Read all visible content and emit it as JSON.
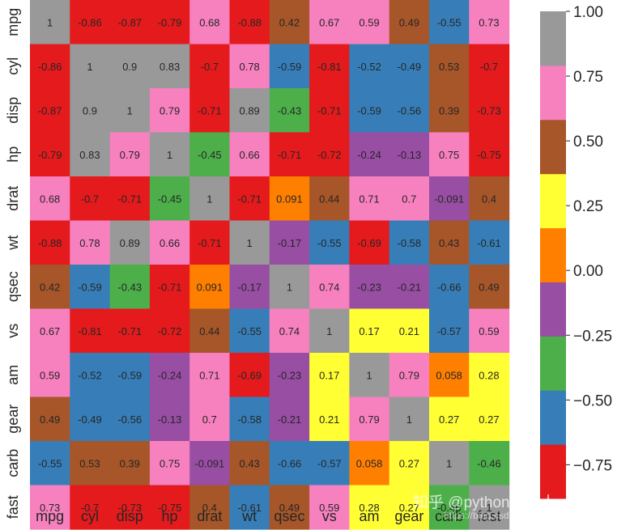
{
  "chart_data": {
    "type": "heatmap",
    "title": "",
    "xlabel": "",
    "ylabel": "",
    "row_labels": [
      "mpg",
      "cyl",
      "disp",
      "hp",
      "drat",
      "wt",
      "qsec",
      "vs",
      "am",
      "gear",
      "carb",
      "fast"
    ],
    "col_labels": [
      "mpg",
      "cyl",
      "disp",
      "hp",
      "drat",
      "wt",
      "qsec",
      "vs",
      "am",
      "gear",
      "carb",
      "fast"
    ],
    "values": [
      [
        1,
        -0.86,
        -0.87,
        -0.79,
        0.68,
        -0.88,
        0.42,
        0.67,
        0.59,
        0.49,
        -0.55,
        0.73
      ],
      [
        -0.86,
        1,
        0.9,
        0.83,
        -0.7,
        0.78,
        -0.59,
        -0.81,
        -0.52,
        -0.49,
        0.53,
        -0.7
      ],
      [
        -0.87,
        0.9,
        1,
        0.79,
        -0.71,
        0.89,
        -0.43,
        -0.71,
        -0.59,
        -0.56,
        0.39,
        -0.73
      ],
      [
        -0.79,
        0.83,
        0.79,
        1,
        -0.45,
        0.66,
        -0.71,
        -0.72,
        -0.24,
        -0.13,
        0.75,
        -0.75
      ],
      [
        0.68,
        -0.7,
        -0.71,
        -0.45,
        1,
        -0.71,
        0.091,
        0.44,
        0.71,
        0.7,
        -0.091,
        0.4
      ],
      [
        -0.88,
        0.78,
        0.89,
        0.66,
        -0.71,
        1,
        -0.17,
        -0.55,
        -0.69,
        -0.58,
        0.43,
        -0.61
      ],
      [
        0.42,
        -0.59,
        -0.43,
        -0.71,
        0.091,
        -0.17,
        1,
        0.74,
        -0.23,
        -0.21,
        -0.66,
        0.49
      ],
      [
        0.67,
        -0.81,
        -0.71,
        -0.72,
        0.44,
        -0.55,
        0.74,
        1,
        0.17,
        0.21,
        -0.57,
        0.59
      ],
      [
        0.59,
        -0.52,
        -0.59,
        -0.24,
        0.71,
        -0.69,
        -0.23,
        0.17,
        1,
        0.79,
        0.058,
        0.28
      ],
      [
        0.49,
        -0.49,
        -0.56,
        -0.13,
        0.7,
        -0.58,
        -0.21,
        0.21,
        0.79,
        1,
        0.27,
        0.27
      ],
      [
        -0.55,
        0.53,
        0.39,
        0.75,
        -0.091,
        0.43,
        -0.66,
        -0.57,
        0.058,
        0.27,
        1,
        -0.46
      ],
      [
        0.73,
        -0.7,
        -0.73,
        -0.75,
        0.4,
        -0.61,
        0.49,
        0.59,
        0.28,
        0.27,
        -0.46,
        1
      ]
    ],
    "colormap": "Set1",
    "colors": [
      "#e41a1c",
      "#377eb8",
      "#4daf4a",
      "#984ea3",
      "#ff7f00",
      "#ffff33",
      "#a65628",
      "#f781bf",
      "#999999"
    ],
    "colorbar": {
      "range": [
        -0.88,
        1
      ],
      "ticks": [
        -0.75,
        -0.5,
        -0.25,
        0.0,
        0.25,
        0.5,
        0.75,
        1.0
      ],
      "tick_labels": [
        "−0.75",
        "−0.50",
        "−0.25",
        "0.00",
        "0.25",
        "0.50",
        "0.75",
        "1.00"
      ]
    },
    "annotations": true,
    "grid": false,
    "legend": "colorbar-right"
  },
  "watermark": {
    "text": "知乎 @python生物人",
    "subtext": "https://blog.csdn.net/qq_21478261"
  }
}
